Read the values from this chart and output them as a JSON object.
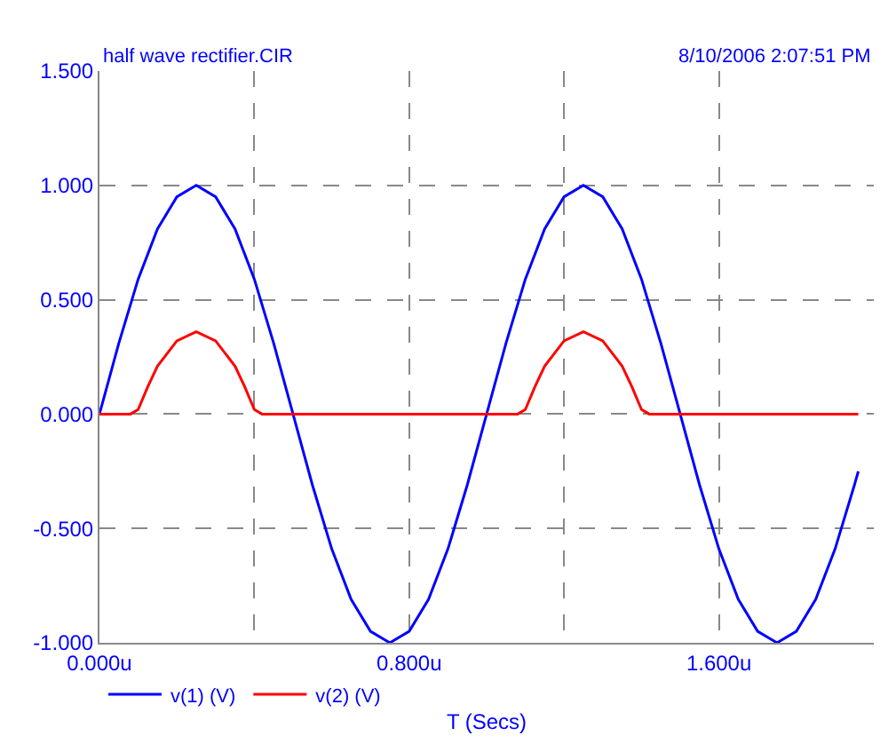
{
  "chart_data": {
    "type": "line",
    "xlabel": "T (Secs)",
    "annotations": [
      "half wave rectifier.CIR",
      "8/10/2006 2:07:51 PM"
    ],
    "xlim": [
      0,
      2.0
    ],
    "xticks": [
      {
        "value": 0,
        "label": "0.000u"
      },
      {
        "value": 0.4,
        "label": null
      },
      {
        "value": 0.8,
        "label": "0.800u"
      },
      {
        "value": 1.2,
        "label": null
      },
      {
        "value": 1.6,
        "label": "1.600u"
      }
    ],
    "ylim": [
      -1.0,
      1.5
    ],
    "yticks": [
      {
        "value": -1.0,
        "label": "-1.000"
      },
      {
        "value": -0.5,
        "label": "-0.500"
      },
      {
        "value": 0,
        "label": "0.000"
      },
      {
        "value": 0.5,
        "label": "0.500"
      },
      {
        "value": 1.0,
        "label": "1.000"
      },
      {
        "value": 1.5,
        "label": "1.500"
      }
    ],
    "grid": true,
    "legend": "bottom",
    "line_style": "solid",
    "series": [
      {
        "name": "v(1) (V)",
        "color": "#0000ff",
        "x": [
          0,
          0.05,
          0.1,
          0.15,
          0.2,
          0.25,
          0.3,
          0.35,
          0.4,
          0.45,
          0.5,
          0.55,
          0.6,
          0.65,
          0.7,
          0.75,
          0.8,
          0.85,
          0.9,
          0.95,
          1.0,
          1.05,
          1.1,
          1.15,
          1.2,
          1.25,
          1.3,
          1.35,
          1.4,
          1.45,
          1.5,
          1.55,
          1.6,
          1.65,
          1.7,
          1.75,
          1.8,
          1.85,
          1.9,
          1.95,
          1.96
        ],
        "values": [
          0,
          0.31,
          0.59,
          0.81,
          0.95,
          1.0,
          0.95,
          0.81,
          0.59,
          0.31,
          0,
          -0.31,
          -0.59,
          -0.81,
          -0.95,
          -1.0,
          -0.95,
          -0.81,
          -0.59,
          -0.31,
          0,
          0.31,
          0.59,
          0.81,
          0.95,
          1.0,
          0.95,
          0.81,
          0.59,
          0.31,
          0,
          -0.31,
          -0.59,
          -0.81,
          -0.95,
          -1.0,
          -0.95,
          -0.81,
          -0.59,
          -0.31,
          -0.25
        ]
      },
      {
        "name": "v(2) (V)",
        "color": "#ff0000",
        "x": [
          0,
          0.08,
          0.1,
          0.125,
          0.15,
          0.2,
          0.25,
          0.3,
          0.35,
          0.375,
          0.4,
          0.42,
          1.08,
          1.1,
          1.125,
          1.15,
          1.2,
          1.25,
          1.3,
          1.35,
          1.375,
          1.4,
          1.42,
          1.96
        ],
        "values": [
          0,
          0,
          0.02,
          0.12,
          0.21,
          0.32,
          0.36,
          0.32,
          0.21,
          0.12,
          0.02,
          0,
          0,
          0.02,
          0.12,
          0.21,
          0.32,
          0.36,
          0.32,
          0.21,
          0.12,
          0.02,
          0,
          0
        ]
      }
    ]
  }
}
